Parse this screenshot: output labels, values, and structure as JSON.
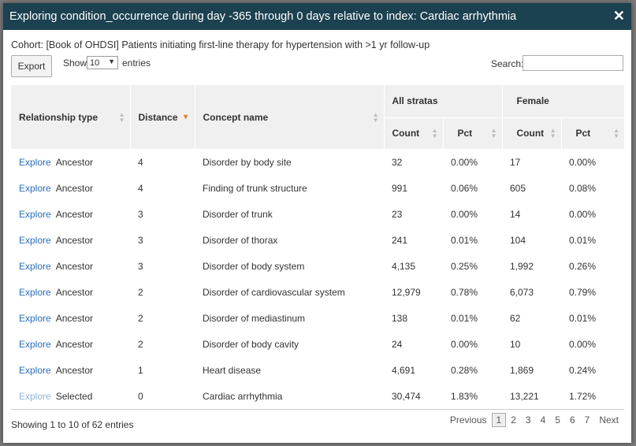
{
  "modal": {
    "title": "Exploring condition_occurrence during day -365 through 0 days relative to index: Cardiac arrhythmia",
    "cohort": "Cohort: [Book of OHDSI] Patients initiating first-line therapy for hypertension with >1 yr follow-up"
  },
  "controls": {
    "export_label": "Export",
    "show_label": "Show",
    "page_size": "10",
    "entries_label": "entries",
    "search_label": "Search:"
  },
  "table": {
    "headers": {
      "relationship": "Relationship type",
      "distance": "Distance",
      "concept": "Concept name",
      "group1": "All stratas",
      "group2": "Female",
      "count": "Count",
      "pct": "Pct"
    },
    "explore_label": "Explore",
    "rows": [
      {
        "rel": "Ancestor",
        "dist": "4",
        "concept": "Disorder by body site",
        "count_all": "32",
        "pct_all": "0.00%",
        "count_f": "17",
        "pct_f": "0.00%"
      },
      {
        "rel": "Ancestor",
        "dist": "4",
        "concept": "Finding of trunk structure",
        "count_all": "991",
        "pct_all": "0.06%",
        "count_f": "605",
        "pct_f": "0.08%"
      },
      {
        "rel": "Ancestor",
        "dist": "3",
        "concept": "Disorder of trunk",
        "count_all": "23",
        "pct_all": "0.00%",
        "count_f": "14",
        "pct_f": "0.00%"
      },
      {
        "rel": "Ancestor",
        "dist": "3",
        "concept": "Disorder of thorax",
        "count_all": "241",
        "pct_all": "0.01%",
        "count_f": "104",
        "pct_f": "0.01%"
      },
      {
        "rel": "Ancestor",
        "dist": "3",
        "concept": "Disorder of body system",
        "count_all": "4,135",
        "pct_all": "0.25%",
        "count_f": "1,992",
        "pct_f": "0.26%"
      },
      {
        "rel": "Ancestor",
        "dist": "2",
        "concept": "Disorder of cardiovascular system",
        "count_all": "12,979",
        "pct_all": "0.78%",
        "count_f": "6,073",
        "pct_f": "0.79%"
      },
      {
        "rel": "Ancestor",
        "dist": "2",
        "concept": "Disorder of mediastinum",
        "count_all": "138",
        "pct_all": "0.01%",
        "count_f": "62",
        "pct_f": "0.01%"
      },
      {
        "rel": "Ancestor",
        "dist": "2",
        "concept": "Disorder of body cavity",
        "count_all": "24",
        "pct_all": "0.00%",
        "count_f": "10",
        "pct_f": "0.00%"
      },
      {
        "rel": "Ancestor",
        "dist": "1",
        "concept": "Heart disease",
        "count_all": "4,691",
        "pct_all": "0.28%",
        "count_f": "1,869",
        "pct_f": "0.24%"
      },
      {
        "rel": "Selected",
        "dist": "0",
        "concept": "Cardiac arrhythmia",
        "count_all": "30,474",
        "pct_all": "1.83%",
        "count_f": "13,221",
        "pct_f": "1.72%"
      }
    ]
  },
  "footer": {
    "info": "Showing 1 to 10 of 62 entries",
    "previous": "Previous",
    "pages": [
      "1",
      "2",
      "3",
      "4",
      "5",
      "6",
      "7"
    ],
    "next": "Next"
  }
}
